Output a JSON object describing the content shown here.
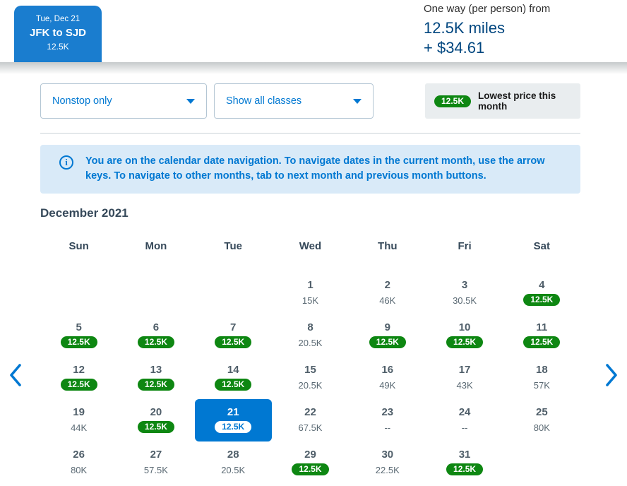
{
  "header": {
    "tab": {
      "date": "Tue, Dec 21",
      "route": "JFK to SJD",
      "price": "12.5K"
    },
    "summary": {
      "label": "One way (per person) from",
      "miles": "12.5K miles",
      "taxes": "+ $34.61"
    }
  },
  "filters": {
    "stops_selected": "Nonstop only",
    "classes_selected": "Show all classes"
  },
  "legend": {
    "badge": "12.5K",
    "label": "Lowest price this month"
  },
  "banner": {
    "text": "You are on the calendar date navigation. To navigate dates in the current month, use the arrow keys. To navigate to other months, tab to next month and previous month buttons."
  },
  "calendar": {
    "month": "December 2021",
    "day_headers": [
      "Sun",
      "Mon",
      "Tue",
      "Wed",
      "Thu",
      "Fri",
      "Sat"
    ],
    "weeks": [
      [
        null,
        null,
        null,
        {
          "day": "1",
          "price": "15K"
        },
        {
          "day": "2",
          "price": "46K"
        },
        {
          "day": "3",
          "price": "30.5K"
        },
        {
          "day": "4",
          "price": "12.5K",
          "lowest": true
        }
      ],
      [
        {
          "day": "5",
          "price": "12.5K",
          "lowest": true
        },
        {
          "day": "6",
          "price": "12.5K",
          "lowest": true
        },
        {
          "day": "7",
          "price": "12.5K",
          "lowest": true
        },
        {
          "day": "8",
          "price": "20.5K"
        },
        {
          "day": "9",
          "price": "12.5K",
          "lowest": true
        },
        {
          "day": "10",
          "price": "12.5K",
          "lowest": true
        },
        {
          "day": "11",
          "price": "12.5K",
          "lowest": true
        }
      ],
      [
        {
          "day": "12",
          "price": "12.5K",
          "lowest": true
        },
        {
          "day": "13",
          "price": "12.5K",
          "lowest": true
        },
        {
          "day": "14",
          "price": "12.5K",
          "lowest": true
        },
        {
          "day": "15",
          "price": "20.5K"
        },
        {
          "day": "16",
          "price": "49K"
        },
        {
          "day": "17",
          "price": "43K"
        },
        {
          "day": "18",
          "price": "57K"
        }
      ],
      [
        {
          "day": "19",
          "price": "44K"
        },
        {
          "day": "20",
          "price": "12.5K",
          "lowest": true
        },
        {
          "day": "21",
          "price": "12.5K",
          "selected": true
        },
        {
          "day": "22",
          "price": "67.5K"
        },
        {
          "day": "23",
          "price": "--"
        },
        {
          "day": "24",
          "price": "--"
        },
        {
          "day": "25",
          "price": "80K"
        }
      ],
      [
        {
          "day": "26",
          "price": "80K"
        },
        {
          "day": "27",
          "price": "57.5K"
        },
        {
          "day": "28",
          "price": "20.5K"
        },
        {
          "day": "29",
          "price": "12.5K",
          "lowest": true
        },
        {
          "day": "30",
          "price": "22.5K"
        },
        {
          "day": "31",
          "price": "12.5K",
          "lowest": true
        },
        null
      ]
    ]
  },
  "icons": {
    "info": "info-icon",
    "previous": "chevron-left-icon",
    "next": "chevron-right-icon",
    "dropdown": "caret-down-icon"
  },
  "colors": {
    "accent_blue": "#0078d2",
    "navy_price": "#00467f",
    "lowest_green": "#0e8712",
    "banner_bg": "#d9eaf8",
    "legend_bg": "#e9edef",
    "slate_text": "#36495a"
  }
}
